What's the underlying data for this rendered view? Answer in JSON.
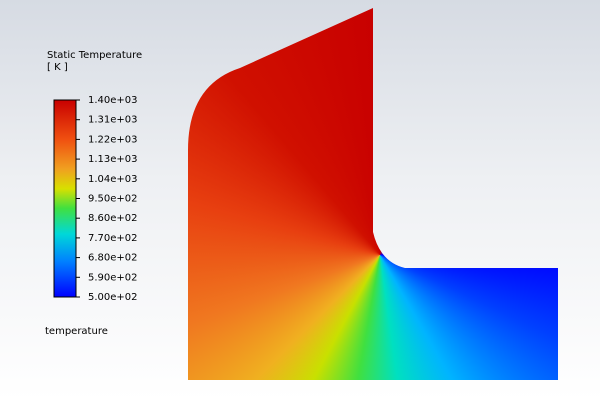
{
  "chart_data": {
    "type": "contour",
    "title": "Static Temperature",
    "unit_label": "[ K ]",
    "annotation": "temperature",
    "zlim": [
      500,
      1400
    ],
    "zticks": [
      {
        "value": 500,
        "label": "5.00e+02"
      },
      {
        "value": 590,
        "label": "5.90e+02"
      },
      {
        "value": 680,
        "label": "6.80e+02"
      },
      {
        "value": 770,
        "label": "7.70e+02"
      },
      {
        "value": 860,
        "label": "8.60e+02"
      },
      {
        "value": 950,
        "label": "9.50e+02"
      },
      {
        "value": 1040,
        "label": "1.04e+03"
      },
      {
        "value": 1130,
        "label": "1.13e+03"
      },
      {
        "value": 1220,
        "label": "1.22e+03"
      },
      {
        "value": 1310,
        "label": "1.31e+03"
      },
      {
        "value": 1400,
        "label": "1.40e+03"
      }
    ]
  }
}
